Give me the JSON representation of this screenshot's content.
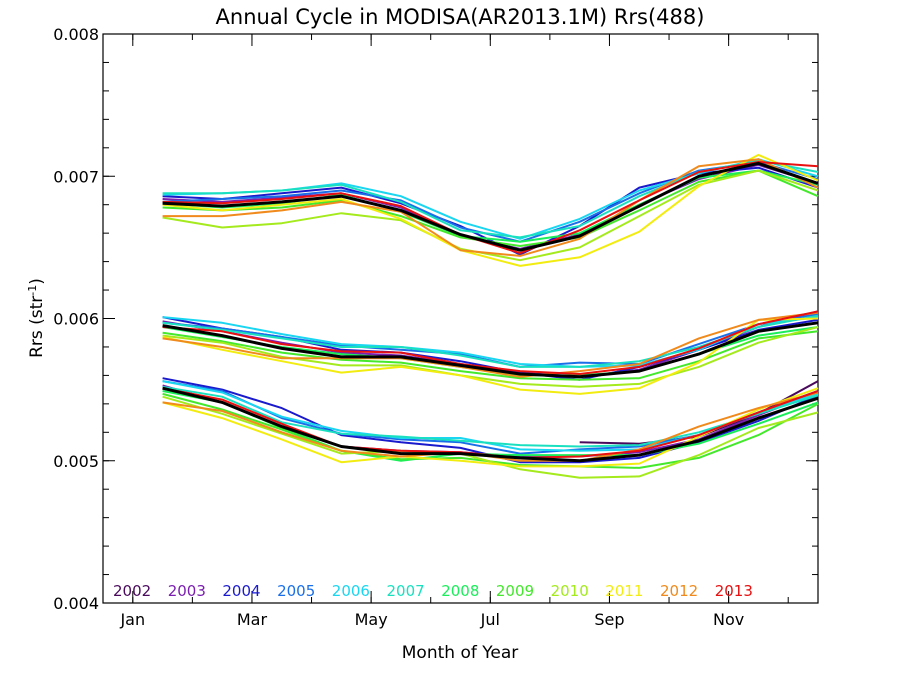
{
  "chart_data": {
    "type": "line",
    "title": "Annual Cycle in MODISA(AR2013.1M) Rrs(488)",
    "xlabel": "Month of Year",
    "ylabel": "Rrs (str",
    "ylabel_superscript": "-1",
    "ylabel_suffix": ")",
    "xlim": [
      0.5,
      12.5
    ],
    "ylim": [
      0.004,
      0.008
    ],
    "x_ticks": [
      {
        "value": 1,
        "label": "Jan"
      },
      {
        "value": 3,
        "label": "Mar"
      },
      {
        "value": 5,
        "label": "May"
      },
      {
        "value": 7,
        "label": "Jul"
      },
      {
        "value": 9,
        "label": "Sep"
      },
      {
        "value": 11,
        "label": "Nov"
      }
    ],
    "y_ticks": [
      {
        "value": 0.004,
        "label": "0.004"
      },
      {
        "value": 0.005,
        "label": "0.005"
      },
      {
        "value": 0.006,
        "label": "0.006"
      },
      {
        "value": 0.007,
        "label": "0.007"
      },
      {
        "value": 0.008,
        "label": "0.008"
      }
    ],
    "grid": false,
    "legend_position": "bottom-left",
    "x": [
      1.5,
      2.5,
      3.5,
      4.5,
      5.5,
      6.5,
      7.5,
      8.5,
      9.5,
      10.5,
      11.5,
      12.5
    ],
    "series": [
      {
        "name": "2002",
        "color": "#4a0a5c",
        "groups": [
          [
            null,
            null,
            null,
            null,
            null,
            null,
            null,
            null,
            null,
            null,
            null,
            null
          ],
          [
            null,
            null,
            null,
            null,
            null,
            null,
            null,
            null,
            null,
            null,
            null,
            null
          ],
          [
            null,
            null,
            null,
            null,
            null,
            null,
            null,
            0.00513,
            0.00512,
            0.00517,
            0.00533,
            0.00556
          ]
        ]
      },
      {
        "name": "2003",
        "color": "#7a1fb0",
        "groups": [
          [
            0.00684,
            0.00682,
            0.00685,
            0.00688,
            0.00678,
            0.00658,
            0.00649,
            0.00659,
            0.0068,
            0.00698,
            0.00708,
            0.00695
          ],
          [
            0.00598,
            0.00591,
            0.00583,
            0.00576,
            0.00574,
            0.00568,
            0.00562,
            0.00559,
            0.00564,
            0.00578,
            0.00594,
            0.00605
          ],
          [
            0.00553,
            0.00541,
            0.00524,
            0.0051,
            0.00507,
            0.00506,
            0.00503,
            0.00503,
            0.00506,
            0.00515,
            0.00532,
            0.00548
          ]
        ]
      },
      {
        "name": "2004",
        "color": "#1a1acc",
        "groups": [
          [
            0.00686,
            0.00684,
            0.00688,
            0.00692,
            0.00681,
            0.00665,
            0.00645,
            0.00665,
            0.00692,
            0.00702,
            0.00706,
            0.00692
          ],
          [
            0.00601,
            0.00593,
            0.00587,
            0.00578,
            0.00576,
            0.0057,
            0.00562,
            0.00557,
            0.00566,
            0.00578,
            0.00592,
            0.00599
          ],
          [
            0.00558,
            0.0055,
            0.00537,
            0.00518,
            0.00513,
            0.00509,
            0.00499,
            0.00499,
            0.00502,
            0.00513,
            0.00528,
            0.00546
          ]
        ]
      },
      {
        "name": "2005",
        "color": "#1a6fe8",
        "groups": [
          [
            0.00682,
            0.00684,
            0.00686,
            0.0069,
            0.00683,
            0.00664,
            0.00654,
            0.00668,
            0.00688,
            0.00704,
            0.0071,
            0.00698
          ],
          [
            0.00597,
            0.00593,
            0.00587,
            0.00581,
            0.00578,
            0.00575,
            0.00566,
            0.00569,
            0.00568,
            0.00582,
            0.00596,
            0.00603
          ],
          [
            0.00556,
            0.00549,
            0.0053,
            0.00519,
            0.00515,
            0.00513,
            0.00505,
            0.00508,
            0.0051,
            0.00518,
            0.00534,
            0.00549
          ]
        ]
      },
      {
        "name": "2006",
        "color": "#1ad6f0",
        "groups": [
          [
            0.00687,
            0.00688,
            0.0069,
            0.00695,
            0.00686,
            0.00668,
            0.00656,
            0.0067,
            0.0069,
            0.00702,
            0.00712,
            0.007
          ],
          [
            0.00601,
            0.00597,
            0.00589,
            0.00582,
            0.0058,
            0.00576,
            0.00568,
            0.00566,
            0.00567,
            0.00578,
            0.00596,
            0.00601
          ],
          [
            0.00556,
            0.00548,
            0.00531,
            0.00521,
            0.00516,
            0.00516,
            0.00508,
            0.00507,
            0.00508,
            0.00518,
            0.00534,
            0.00547
          ]
        ]
      },
      {
        "name": "2007",
        "color": "#1ae0c0",
        "groups": [
          [
            0.00688,
            0.00688,
            0.0069,
            0.00694,
            0.00682,
            0.00662,
            0.00657,
            0.00665,
            0.00686,
            0.00703,
            0.00711,
            0.00703
          ],
          [
            0.00597,
            0.00592,
            0.00586,
            0.0058,
            0.0058,
            0.00574,
            0.00566,
            0.00566,
            0.0057,
            0.0058,
            0.00594,
            0.00602
          ],
          [
            0.00552,
            0.00545,
            0.00527,
            0.00519,
            0.00517,
            0.00514,
            0.00511,
            0.0051,
            0.00511,
            0.0052,
            0.00533,
            0.00546
          ]
        ]
      },
      {
        "name": "2008",
        "color": "#1aee5a",
        "groups": [
          [
            0.00681,
            0.00678,
            0.00681,
            0.00687,
            0.00675,
            0.00658,
            0.00654,
            0.0066,
            0.0068,
            0.00699,
            0.00704,
            0.00694
          ],
          [
            0.00594,
            0.00587,
            0.0058,
            0.00575,
            0.00572,
            0.00566,
            0.0056,
            0.0056,
            0.00563,
            0.00575,
            0.00588,
            0.00594
          ],
          [
            0.00549,
            0.00541,
            0.00523,
            0.00507,
            0.005,
            0.00505,
            0.00504,
            0.00504,
            0.00504,
            0.00512,
            0.00526,
            0.00541
          ]
        ]
      },
      {
        "name": "2009",
        "color": "#44e82c",
        "groups": [
          [
            0.00678,
            0.00676,
            0.00678,
            0.00683,
            0.00672,
            0.00657,
            0.00651,
            0.00657,
            0.00676,
            0.00696,
            0.00704,
            0.00686
          ],
          [
            0.0059,
            0.00584,
            0.00576,
            0.00571,
            0.00569,
            0.00563,
            0.00558,
            0.00557,
            0.00558,
            0.0057,
            0.00586,
            0.00591
          ],
          [
            0.00547,
            0.00536,
            0.00522,
            0.00507,
            0.00501,
            0.00502,
            0.00497,
            0.00496,
            0.00495,
            0.00502,
            0.00518,
            0.0054
          ]
        ]
      },
      {
        "name": "2010",
        "color": "#a4ea1c",
        "groups": [
          [
            0.00671,
            0.00664,
            0.00667,
            0.00674,
            0.00669,
            0.00649,
            0.00641,
            0.0065,
            0.00672,
            0.00694,
            0.00704,
            0.0069
          ],
          [
            0.00588,
            0.00583,
            0.00573,
            0.00567,
            0.00567,
            0.0056,
            0.00554,
            0.00552,
            0.00554,
            0.00566,
            0.00583,
            0.00594
          ],
          [
            0.00545,
            0.00533,
            0.00519,
            0.00505,
            0.00507,
            0.00505,
            0.00494,
            0.00488,
            0.00489,
            0.00504,
            0.00523,
            0.00534
          ]
        ]
      },
      {
        "name": "2011",
        "color": "#f2ec10",
        "groups": [
          [
            0.0068,
            0.00676,
            0.0068,
            0.00684,
            0.0067,
            0.00648,
            0.00637,
            0.00643,
            0.00661,
            0.00693,
            0.00715,
            0.00697
          ],
          [
            0.00587,
            0.00578,
            0.0057,
            0.00562,
            0.00566,
            0.0056,
            0.0055,
            0.00547,
            0.00551,
            0.00569,
            0.00599,
            0.006
          ],
          [
            0.00541,
            0.0053,
            0.00515,
            0.00499,
            0.00503,
            0.005,
            0.00496,
            0.00496,
            0.00498,
            0.00517,
            0.00536,
            0.00551
          ]
        ]
      },
      {
        "name": "2012",
        "color": "#f08a1c",
        "groups": [
          [
            0.00672,
            0.00672,
            0.00676,
            0.00682,
            0.00675,
            0.00648,
            0.00644,
            0.00656,
            0.00683,
            0.00707,
            0.00712,
            0.00692
          ],
          [
            0.00586,
            0.0058,
            0.00572,
            0.00572,
            0.00572,
            0.00566,
            0.00559,
            0.00563,
            0.00568,
            0.00586,
            0.00599,
            0.00604
          ],
          [
            0.00541,
            0.00535,
            0.0052,
            0.00507,
            0.00503,
            0.00506,
            0.005,
            0.005,
            0.00508,
            0.00524,
            0.00537,
            0.00548
          ]
        ]
      },
      {
        "name": "2013",
        "color": "#e81010",
        "groups": [
          [
            0.00682,
            0.00681,
            0.00684,
            0.00688,
            0.00679,
            0.00659,
            0.00646,
            0.00662,
            0.00683,
            0.00703,
            0.0071,
            0.00707
          ],
          [
            0.00594,
            0.00591,
            0.00582,
            0.00577,
            0.00576,
            0.00568,
            0.00563,
            0.00561,
            0.00566,
            0.00579,
            0.00596,
            0.00605
          ],
          [
            0.00551,
            0.00543,
            0.00526,
            0.0051,
            0.00507,
            0.00506,
            0.00502,
            0.00503,
            0.00507,
            0.00518,
            0.00534,
            0.00549
          ]
        ]
      },
      {
        "color": "#000000",
        "groups": [
          [
            0.00681,
            0.00679,
            0.00682,
            0.00686,
            0.00676,
            0.00659,
            0.00648,
            0.00658,
            0.00679,
            0.007,
            0.00709,
            0.00695
          ],
          [
            0.00595,
            0.00588,
            0.00579,
            0.00573,
            0.00573,
            0.00567,
            0.00561,
            0.00559,
            0.00563,
            0.00575,
            0.00591,
            0.00597
          ],
          [
            0.00551,
            0.00541,
            0.00524,
            0.0051,
            0.00505,
            0.00505,
            0.00502,
            0.005,
            0.00504,
            0.00514,
            0.0053,
            0.00544
          ]
        ]
      }
    ]
  }
}
